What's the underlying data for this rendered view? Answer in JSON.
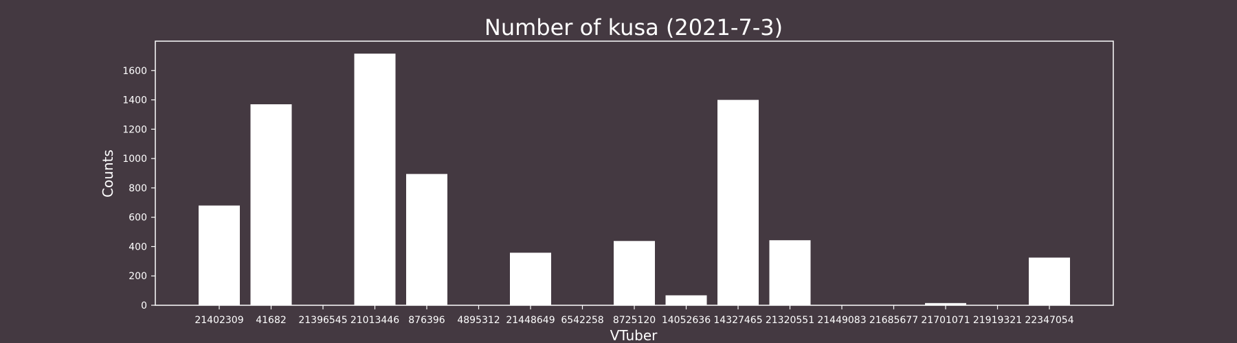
{
  "chart_data": {
    "type": "bar",
    "title": "Number of kusa (2021-7-3)",
    "xlabel": "VTuber",
    "ylabel": "Counts",
    "categories": [
      "21402309",
      "41682",
      "21396545",
      "21013446",
      "876396",
      "4895312",
      "21448649",
      "6542258",
      "8725120",
      "14052636",
      "14327465",
      "21320551",
      "21449083",
      "21685677",
      "21701071",
      "21919321",
      "22347054"
    ],
    "values": [
      680,
      1370,
      0,
      1715,
      895,
      0,
      358,
      0,
      438,
      68,
      1400,
      443,
      0,
      0,
      15,
      0,
      325
    ],
    "ylim": [
      0,
      1800
    ],
    "yticks": [
      0,
      200,
      400,
      600,
      800,
      1000,
      1200,
      1400,
      1600
    ],
    "grid": false,
    "colors": {
      "background": "#443941",
      "bar": "#ffffff",
      "axes": "#ffffff",
      "text": "#ffffff"
    }
  }
}
